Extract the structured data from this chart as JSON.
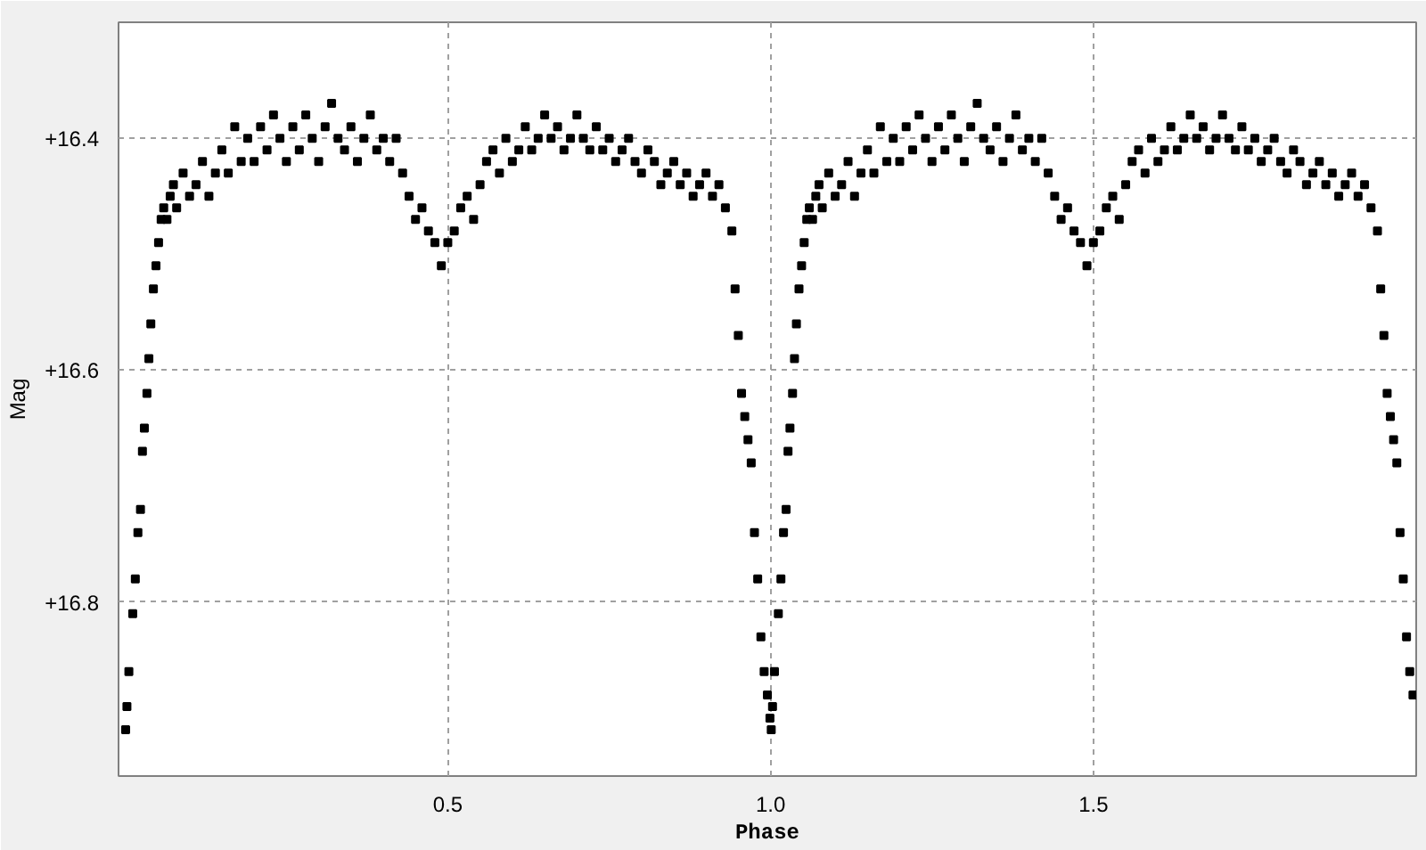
{
  "chart_data": {
    "type": "scatter",
    "xlabel": "Phase",
    "ylabel": "Mag",
    "xlim": [
      -0.01,
      2.0
    ],
    "ylim": [
      16.95,
      16.3
    ],
    "xticks": [
      0.5,
      {
        "value": 1.0,
        "label": "1.0"
      },
      1.5
    ],
    "yticks": [
      {
        "value": 16.4,
        "label": "+16.4"
      },
      {
        "value": 16.6,
        "label": "+16.6"
      },
      {
        "value": 16.8,
        "label": "+16.8"
      }
    ],
    "grid": true,
    "marker": "square",
    "series": [
      {
        "color": "#000000",
        "x": [
          0.001,
          0.003,
          0.006,
          0.012,
          0.016,
          0.02,
          0.024,
          0.027,
          0.03,
          0.034,
          0.037,
          0.04,
          0.044,
          0.048,
          0.052,
          0.056,
          0.06,
          0.065,
          0.07,
          0.075,
          0.08,
          0.09,
          0.1,
          0.11,
          0.12,
          0.13,
          0.14,
          0.15,
          0.16,
          0.17,
          0.18,
          0.19,
          0.2,
          0.21,
          0.22,
          0.23,
          0.24,
          0.25,
          0.26,
          0.27,
          0.28,
          0.29,
          0.3,
          0.31,
          0.32,
          0.33,
          0.34,
          0.35,
          0.36,
          0.37,
          0.38,
          0.39,
          0.4,
          0.41,
          0.42,
          0.43,
          0.44,
          0.45,
          0.46,
          0.47,
          0.48,
          0.49,
          0.5,
          0.51,
          0.52,
          0.53,
          0.54,
          0.55,
          0.56,
          0.57,
          0.58,
          0.59,
          0.6,
          0.61,
          0.62,
          0.63,
          0.64,
          0.65,
          0.66,
          0.67,
          0.68,
          0.69,
          0.7,
          0.71,
          0.72,
          0.73,
          0.74,
          0.75,
          0.76,
          0.77,
          0.78,
          0.79,
          0.8,
          0.81,
          0.82,
          0.83,
          0.84,
          0.85,
          0.86,
          0.87,
          0.88,
          0.89,
          0.9,
          0.91,
          0.92,
          0.93,
          0.94,
          0.945,
          0.95,
          0.955,
          0.96,
          0.965,
          0.97,
          0.975,
          0.98,
          0.985,
          0.99,
          0.995,
          0.999,
          1.001,
          1.003,
          1.006,
          1.012,
          1.016,
          1.02,
          1.024,
          1.027,
          1.03,
          1.034,
          1.037,
          1.04,
          1.044,
          1.048,
          1.052,
          1.056,
          1.06,
          1.065,
          1.07,
          1.075,
          1.08,
          1.09,
          1.1,
          1.11,
          1.12,
          1.13,
          1.14,
          1.15,
          1.16,
          1.17,
          1.18,
          1.19,
          1.2,
          1.21,
          1.22,
          1.23,
          1.24,
          1.25,
          1.26,
          1.27,
          1.28,
          1.29,
          1.3,
          1.31,
          1.32,
          1.33,
          1.34,
          1.35,
          1.36,
          1.37,
          1.38,
          1.39,
          1.4,
          1.41,
          1.42,
          1.43,
          1.44,
          1.45,
          1.46,
          1.47,
          1.48,
          1.49,
          1.5,
          1.51,
          1.52,
          1.53,
          1.54,
          1.55,
          1.56,
          1.57,
          1.58,
          1.59,
          1.6,
          1.61,
          1.62,
          1.63,
          1.64,
          1.65,
          1.66,
          1.67,
          1.68,
          1.69,
          1.7,
          1.71,
          1.72,
          1.73,
          1.74,
          1.75,
          1.76,
          1.77,
          1.78,
          1.79,
          1.8,
          1.81,
          1.82,
          1.83,
          1.84,
          1.85,
          1.86,
          1.87,
          1.88,
          1.89,
          1.9,
          1.91,
          1.92,
          1.93,
          1.94,
          1.945,
          1.95,
          1.955,
          1.96,
          1.965,
          1.97,
          1.975,
          1.98,
          1.985,
          1.99,
          1.995
        ],
        "values": [
          16.91,
          16.89,
          16.86,
          16.81,
          16.78,
          16.74,
          16.72,
          16.67,
          16.65,
          16.62,
          16.59,
          16.56,
          16.53,
          16.51,
          16.49,
          16.47,
          16.46,
          16.47,
          16.45,
          16.44,
          16.46,
          16.43,
          16.45,
          16.44,
          16.42,
          16.45,
          16.43,
          16.41,
          16.43,
          16.39,
          16.42,
          16.4,
          16.42,
          16.39,
          16.41,
          16.38,
          16.4,
          16.42,
          16.39,
          16.41,
          16.38,
          16.4,
          16.42,
          16.39,
          16.37,
          16.4,
          16.41,
          16.39,
          16.42,
          16.4,
          16.38,
          16.41,
          16.4,
          16.42,
          16.4,
          16.43,
          16.45,
          16.47,
          16.46,
          16.48,
          16.49,
          16.51,
          16.49,
          16.48,
          16.46,
          16.45,
          16.47,
          16.44,
          16.42,
          16.41,
          16.43,
          16.4,
          16.42,
          16.41,
          16.39,
          16.41,
          16.4,
          16.38,
          16.4,
          16.39,
          16.41,
          16.4,
          16.38,
          16.4,
          16.41,
          16.39,
          16.41,
          16.4,
          16.42,
          16.41,
          16.4,
          16.42,
          16.43,
          16.41,
          16.42,
          16.44,
          16.43,
          16.42,
          16.44,
          16.43,
          16.45,
          16.44,
          16.43,
          16.45,
          16.44,
          16.46,
          16.48,
          16.53,
          16.57,
          16.62,
          16.64,
          16.66,
          16.68,
          16.74,
          16.78,
          16.83,
          16.86,
          16.88,
          16.9,
          16.91,
          16.89,
          16.86,
          16.81,
          16.78,
          16.74,
          16.72,
          16.67,
          16.65,
          16.62,
          16.59,
          16.56,
          16.53,
          16.51,
          16.49,
          16.47,
          16.46,
          16.47,
          16.45,
          16.44,
          16.46,
          16.43,
          16.45,
          16.44,
          16.42,
          16.45,
          16.43,
          16.41,
          16.43,
          16.39,
          16.42,
          16.4,
          16.42,
          16.39,
          16.41,
          16.38,
          16.4,
          16.42,
          16.39,
          16.41,
          16.38,
          16.4,
          16.42,
          16.39,
          16.37,
          16.4,
          16.41,
          16.39,
          16.42,
          16.4,
          16.38,
          16.41,
          16.4,
          16.42,
          16.4,
          16.43,
          16.45,
          16.47,
          16.46,
          16.48,
          16.49,
          16.51,
          16.49,
          16.48,
          16.46,
          16.45,
          16.47,
          16.44,
          16.42,
          16.41,
          16.43,
          16.4,
          16.42,
          16.41,
          16.39,
          16.41,
          16.4,
          16.38,
          16.4,
          16.39,
          16.41,
          16.4,
          16.38,
          16.4,
          16.41,
          16.39,
          16.41,
          16.4,
          16.42,
          16.41,
          16.4,
          16.42,
          16.43,
          16.41,
          16.42,
          16.44,
          16.43,
          16.42,
          16.44,
          16.43,
          16.45,
          16.44,
          16.43,
          16.45,
          16.44,
          16.46,
          16.48,
          16.53,
          16.57,
          16.62,
          16.64,
          16.66,
          16.68,
          16.74,
          16.78,
          16.83,
          16.86,
          16.88
        ]
      }
    ]
  }
}
